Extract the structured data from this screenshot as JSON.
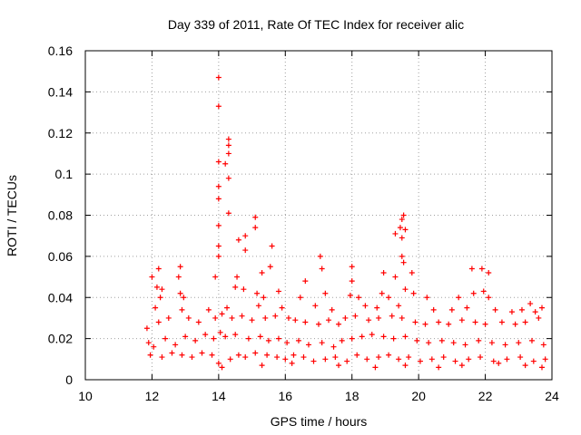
{
  "chart_data": {
    "type": "scatter",
    "title": "Day 339 of 2011, Rate Of TEC Index for receiver alic",
    "xlabel": "GPS time / hours",
    "ylabel": "ROTI / TECUs",
    "xlim": [
      10,
      24
    ],
    "ylim": [
      0,
      0.16
    ],
    "xticks": [
      10,
      12,
      14,
      16,
      18,
      20,
      22,
      24
    ],
    "xtick_labels": [
      "10",
      "12",
      "14",
      "16",
      "18",
      "20",
      "22",
      "24"
    ],
    "yticks": [
      0,
      0.02,
      0.04,
      0.06,
      0.08,
      0.1,
      0.12,
      0.14,
      0.16
    ],
    "ytick_labels": [
      "0",
      "0.02",
      "0.04",
      "0.06",
      "0.08",
      "0.1",
      "0.12",
      "0.14",
      "0.16"
    ],
    "grid": true,
    "marker": "+",
    "color": "#ff0000",
    "x_range_observed": [
      11.8,
      23.8
    ],
    "series": [
      {
        "name": "ROTI",
        "points": [
          [
            14.0,
            0.147
          ],
          [
            14.0,
            0.133
          ],
          [
            14.3,
            0.117
          ],
          [
            14.3,
            0.114
          ],
          [
            14.3,
            0.11
          ],
          [
            14.0,
            0.106
          ],
          [
            14.2,
            0.105
          ],
          [
            14.3,
            0.098
          ],
          [
            14.0,
            0.094
          ],
          [
            14.0,
            0.088
          ],
          [
            14.3,
            0.081
          ],
          [
            15.1,
            0.079
          ],
          [
            19.55,
            0.08
          ],
          [
            19.5,
            0.078
          ],
          [
            14.0,
            0.075
          ],
          [
            15.1,
            0.074
          ],
          [
            19.45,
            0.074
          ],
          [
            19.6,
            0.073
          ],
          [
            14.8,
            0.07
          ],
          [
            19.3,
            0.071
          ],
          [
            19.5,
            0.069
          ],
          [
            14.6,
            0.068
          ],
          [
            15.6,
            0.065
          ],
          [
            14.0,
            0.065
          ],
          [
            14.8,
            0.063
          ],
          [
            14.0,
            0.06
          ],
          [
            17.05,
            0.06
          ],
          [
            19.5,
            0.06
          ],
          [
            12.2,
            0.054
          ],
          [
            12.85,
            0.055
          ],
          [
            15.55,
            0.055
          ],
          [
            17.1,
            0.054
          ],
          [
            18.0,
            0.055
          ],
          [
            19.55,
            0.057
          ],
          [
            21.6,
            0.054
          ],
          [
            21.9,
            0.054
          ],
          [
            22.1,
            0.052
          ],
          [
            12.0,
            0.05
          ],
          [
            12.8,
            0.05
          ],
          [
            15.3,
            0.052
          ],
          [
            18.95,
            0.052
          ],
          [
            19.8,
            0.052
          ],
          [
            13.9,
            0.05
          ],
          [
            14.55,
            0.05
          ],
          [
            16.6,
            0.048
          ],
          [
            18.0,
            0.048
          ],
          [
            19.3,
            0.05
          ],
          [
            12.15,
            0.045
          ],
          [
            12.3,
            0.044
          ],
          [
            12.25,
            0.04
          ],
          [
            12.85,
            0.042
          ],
          [
            12.95,
            0.04
          ],
          [
            14.5,
            0.045
          ],
          [
            14.75,
            0.044
          ],
          [
            15.15,
            0.042
          ],
          [
            15.35,
            0.04
          ],
          [
            15.8,
            0.043
          ],
          [
            16.45,
            0.04
          ],
          [
            17.2,
            0.042
          ],
          [
            17.95,
            0.041
          ],
          [
            18.2,
            0.04
          ],
          [
            18.9,
            0.042
          ],
          [
            19.1,
            0.04
          ],
          [
            19.6,
            0.044
          ],
          [
            19.85,
            0.042
          ],
          [
            20.25,
            0.04
          ],
          [
            21.2,
            0.04
          ],
          [
            21.65,
            0.042
          ],
          [
            21.95,
            0.043
          ],
          [
            22.1,
            0.04
          ],
          [
            23.35,
            0.037
          ],
          [
            23.7,
            0.035
          ],
          [
            12.1,
            0.035
          ],
          [
            12.9,
            0.034
          ],
          [
            13.7,
            0.034
          ],
          [
            14.25,
            0.035
          ],
          [
            15.2,
            0.036
          ],
          [
            15.9,
            0.035
          ],
          [
            16.9,
            0.036
          ],
          [
            17.4,
            0.034
          ],
          [
            18.4,
            0.036
          ],
          [
            18.75,
            0.035
          ],
          [
            19.4,
            0.036
          ],
          [
            20.45,
            0.034
          ],
          [
            21.0,
            0.034
          ],
          [
            21.45,
            0.035
          ],
          [
            22.3,
            0.034
          ],
          [
            22.8,
            0.033
          ],
          [
            23.1,
            0.034
          ],
          [
            23.5,
            0.033
          ],
          [
            11.85,
            0.025
          ],
          [
            12.2,
            0.028
          ],
          [
            12.5,
            0.03
          ],
          [
            13.1,
            0.03
          ],
          [
            13.4,
            0.028
          ],
          [
            13.9,
            0.03
          ],
          [
            14.1,
            0.032
          ],
          [
            14.4,
            0.03
          ],
          [
            14.7,
            0.031
          ],
          [
            15.0,
            0.029
          ],
          [
            15.4,
            0.03
          ],
          [
            15.7,
            0.031
          ],
          [
            16.1,
            0.03
          ],
          [
            16.3,
            0.029
          ],
          [
            16.6,
            0.028
          ],
          [
            17.0,
            0.027
          ],
          [
            17.3,
            0.029
          ],
          [
            17.6,
            0.027
          ],
          [
            17.8,
            0.03
          ],
          [
            18.1,
            0.031
          ],
          [
            18.5,
            0.029
          ],
          [
            18.8,
            0.03
          ],
          [
            19.2,
            0.031
          ],
          [
            19.5,
            0.03
          ],
          [
            19.9,
            0.028
          ],
          [
            20.2,
            0.027
          ],
          [
            20.6,
            0.028
          ],
          [
            20.9,
            0.027
          ],
          [
            21.3,
            0.029
          ],
          [
            21.7,
            0.028
          ],
          [
            22.0,
            0.027
          ],
          [
            22.5,
            0.028
          ],
          [
            22.9,
            0.027
          ],
          [
            23.2,
            0.028
          ],
          [
            23.6,
            0.03
          ],
          [
            11.9,
            0.018
          ],
          [
            12.05,
            0.016
          ],
          [
            12.4,
            0.02
          ],
          [
            12.7,
            0.017
          ],
          [
            13.0,
            0.021
          ],
          [
            13.3,
            0.019
          ],
          [
            13.6,
            0.022
          ],
          [
            13.85,
            0.02
          ],
          [
            14.05,
            0.023
          ],
          [
            14.2,
            0.021
          ],
          [
            14.5,
            0.022
          ],
          [
            14.9,
            0.02
          ],
          [
            15.25,
            0.021
          ],
          [
            15.5,
            0.019
          ],
          [
            15.8,
            0.02
          ],
          [
            16.05,
            0.018
          ],
          [
            16.4,
            0.019
          ],
          [
            16.7,
            0.017
          ],
          [
            17.1,
            0.018
          ],
          [
            17.45,
            0.016
          ],
          [
            17.7,
            0.019
          ],
          [
            18.0,
            0.02
          ],
          [
            18.3,
            0.021
          ],
          [
            18.6,
            0.022
          ],
          [
            18.95,
            0.021
          ],
          [
            19.25,
            0.02
          ],
          [
            19.6,
            0.021
          ],
          [
            19.95,
            0.019
          ],
          [
            20.3,
            0.018
          ],
          [
            20.7,
            0.019
          ],
          [
            21.05,
            0.018
          ],
          [
            21.4,
            0.017
          ],
          [
            21.8,
            0.019
          ],
          [
            22.2,
            0.018
          ],
          [
            22.6,
            0.017
          ],
          [
            23.0,
            0.018
          ],
          [
            23.4,
            0.019
          ],
          [
            23.75,
            0.017
          ],
          [
            11.95,
            0.012
          ],
          [
            12.3,
            0.011
          ],
          [
            12.6,
            0.013
          ],
          [
            12.9,
            0.012
          ],
          [
            13.2,
            0.011
          ],
          [
            13.5,
            0.013
          ],
          [
            13.8,
            0.012
          ],
          [
            14.0,
            0.008
          ],
          [
            14.1,
            0.006
          ],
          [
            14.35,
            0.01
          ],
          [
            14.6,
            0.012
          ],
          [
            14.8,
            0.011
          ],
          [
            15.1,
            0.013
          ],
          [
            15.45,
            0.012
          ],
          [
            15.75,
            0.011
          ],
          [
            16.0,
            0.01
          ],
          [
            16.25,
            0.012
          ],
          [
            16.55,
            0.011
          ],
          [
            16.85,
            0.009
          ],
          [
            17.2,
            0.01
          ],
          [
            17.5,
            0.011
          ],
          [
            17.85,
            0.009
          ],
          [
            18.15,
            0.012
          ],
          [
            18.45,
            0.01
          ],
          [
            18.8,
            0.011
          ],
          [
            19.1,
            0.012
          ],
          [
            19.4,
            0.01
          ],
          [
            19.7,
            0.011
          ],
          [
            20.05,
            0.009
          ],
          [
            20.4,
            0.01
          ],
          [
            20.75,
            0.011
          ],
          [
            21.1,
            0.009
          ],
          [
            21.5,
            0.01
          ],
          [
            21.85,
            0.011
          ],
          [
            22.25,
            0.009
          ],
          [
            22.65,
            0.01
          ],
          [
            23.05,
            0.011
          ],
          [
            23.45,
            0.009
          ],
          [
            23.8,
            0.01
          ],
          [
            16.2,
            0.008
          ],
          [
            17.6,
            0.007
          ],
          [
            18.7,
            0.006
          ],
          [
            19.6,
            0.007
          ],
          [
            20.6,
            0.006
          ],
          [
            21.3,
            0.007
          ],
          [
            22.4,
            0.008
          ],
          [
            23.2,
            0.007
          ],
          [
            23.7,
            0.006
          ],
          [
            15.3,
            0.007
          ]
        ]
      }
    ]
  }
}
